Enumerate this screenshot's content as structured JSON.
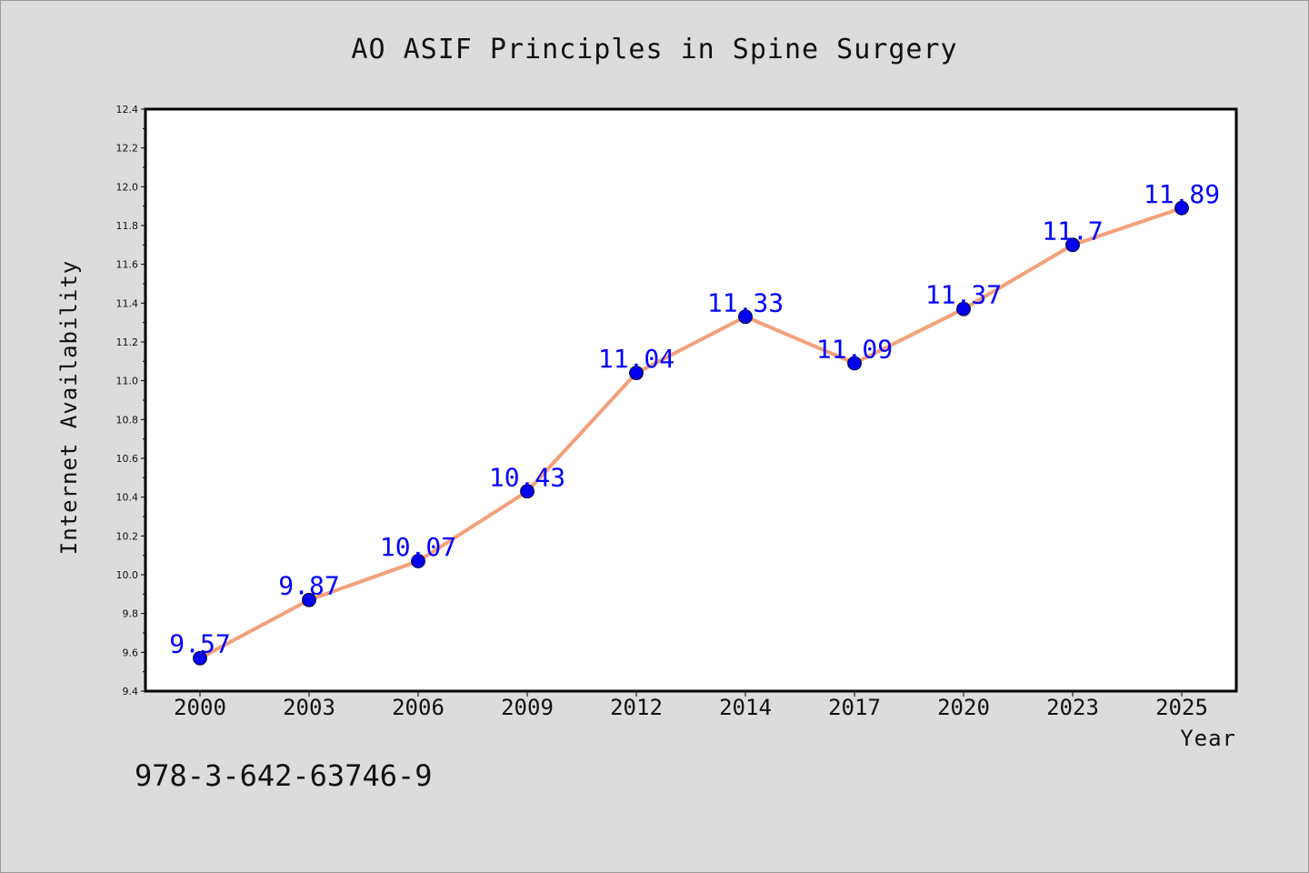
{
  "chart_data": {
    "type": "line",
    "title": "AO ASIF Principles in Spine Surgery",
    "xlabel": "Year",
    "ylabel": "Internet Availability",
    "categories": [
      "2000",
      "2003",
      "2006",
      "2009",
      "2012",
      "2014",
      "2017",
      "2020",
      "2023",
      "2025"
    ],
    "series": [
      {
        "values": [
          9.57,
          9.87,
          10.07,
          10.43,
          11.04,
          11.33,
          11.09,
          11.37,
          11.7,
          11.89
        ],
        "labels": [
          "9.57",
          "9.87",
          "10.07",
          "10.43",
          "11.04",
          "11.33",
          "11.09",
          "11.37",
          "11.7",
          "11.89"
        ],
        "line_color": "#f4a07a",
        "marker_color": "#0000ee"
      }
    ],
    "ylim": [
      9.4,
      12.4
    ],
    "yticks": [
      "9.4",
      "9.6",
      "9.8",
      "10.0",
      "10.2",
      "10.4",
      "10.6",
      "10.8",
      "11.0",
      "11.2",
      "11.4",
      "11.6",
      "11.8",
      "12.0",
      "12.2",
      "12.4"
    ],
    "grid": false,
    "legend": "none"
  },
  "footer": {
    "isbn": "978-3-642-63746-9"
  },
  "colors": {
    "background": "#dcdcdc",
    "plot_area": "#ffffff",
    "data_label": "#0000ff"
  }
}
